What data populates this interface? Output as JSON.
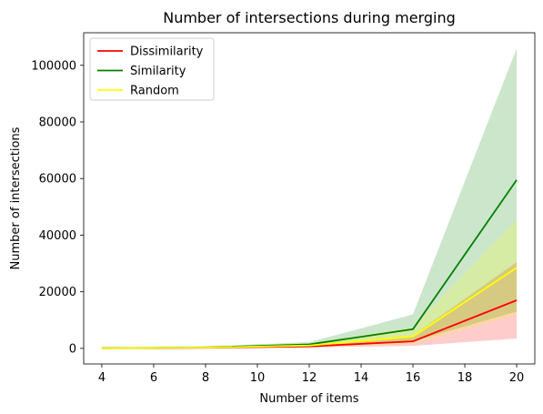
{
  "chart_data": {
    "type": "line",
    "title": "Number of intersections during merging",
    "xlabel": "Number of items",
    "ylabel": "Number of intersections",
    "xlim": [
      3.3,
      20.7
    ],
    "ylim": [
      -5500,
      111500
    ],
    "xticks": [
      4,
      6,
      8,
      10,
      12,
      14,
      16,
      18,
      20
    ],
    "yticks": [
      0,
      20000,
      40000,
      60000,
      80000,
      100000
    ],
    "grid": false,
    "legend": "top-left",
    "x": [
      4,
      8,
      12,
      16,
      20
    ],
    "series": [
      {
        "name": "Dissimilarity",
        "color": "#ff0000",
        "values": [
          40,
          200,
          700,
          2500,
          17000
        ],
        "lower": [
          0,
          80,
          300,
          900,
          3500
        ],
        "upper": [
          120,
          400,
          1100,
          4500,
          30500
        ]
      },
      {
        "name": "Similarity",
        "color": "#008000",
        "values": [
          60,
          350,
          1400,
          6800,
          59500
        ],
        "lower": [
          0,
          150,
          700,
          2500,
          13000
        ],
        "upper": [
          150,
          650,
          2200,
          12000,
          106000
        ]
      },
      {
        "name": "Random",
        "color": "#ffff00",
        "values": [
          50,
          280,
          1000,
          4200,
          28500
        ],
        "lower": [
          0,
          120,
          400,
          1500,
          12000
        ],
        "upper": [
          130,
          500,
          1700,
          7500,
          45500
        ]
      }
    ]
  }
}
